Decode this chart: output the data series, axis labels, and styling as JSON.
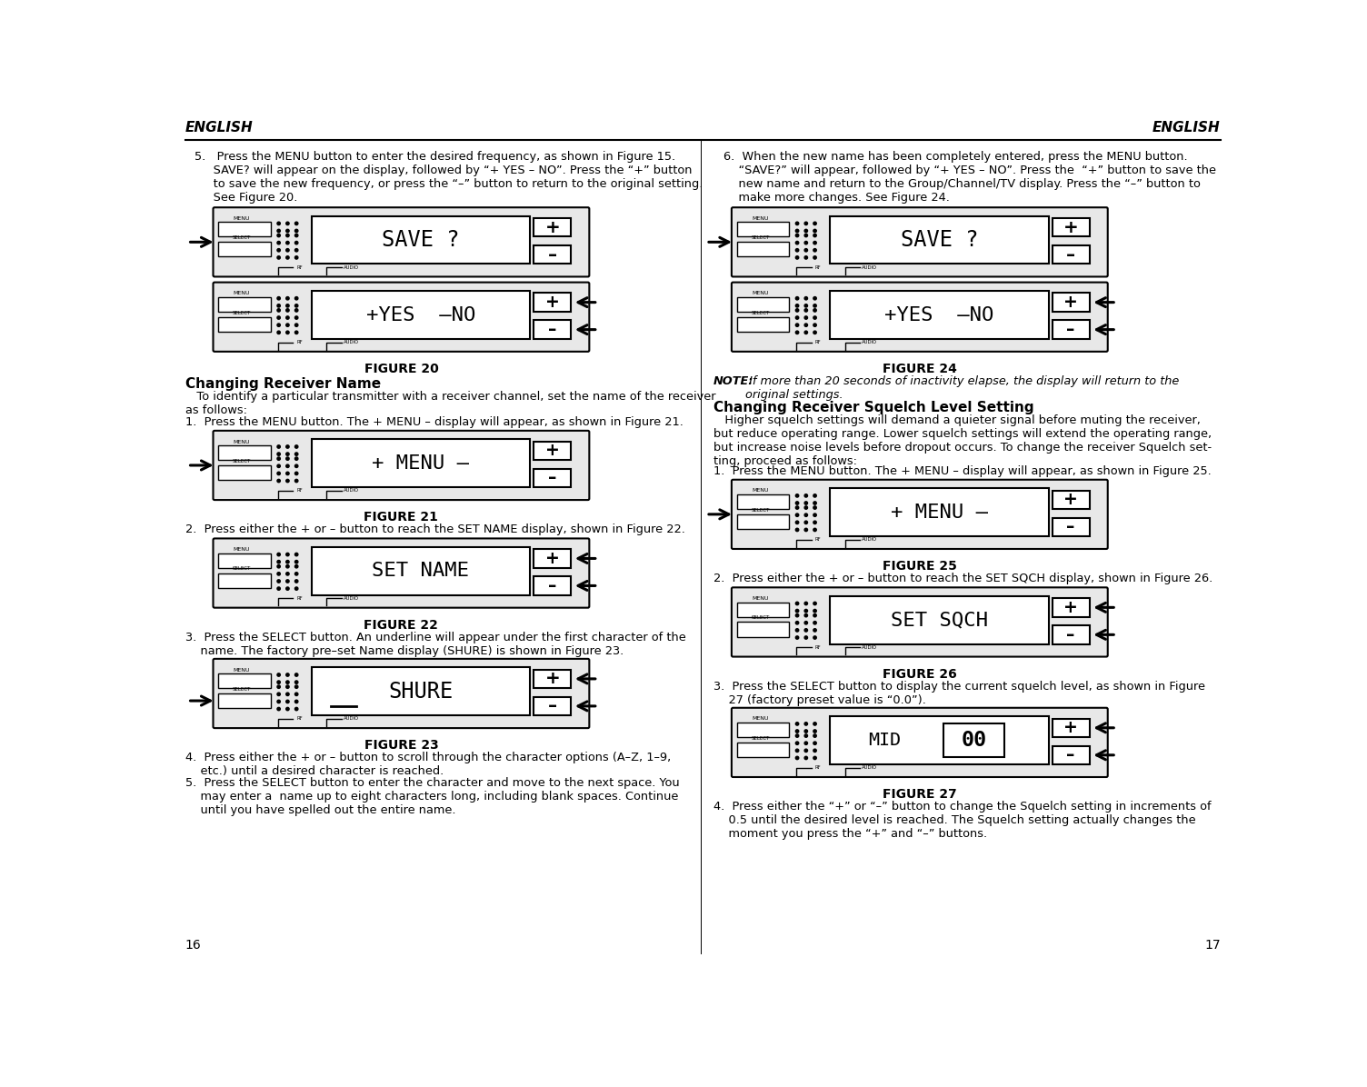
{
  "page_bg": "#ffffff",
  "header_text_left": "ENGLISH",
  "header_text_right": "ENGLISH",
  "left_col": {
    "item5_text": "5.   Press the MENU button to enter the desired frequency, as shown in Figure 15.\n     SAVE? will appear on the display, followed by “+ YES – NO”. Press the “+” button\n     to save the new frequency, or press the “–” button to return to the original setting.\n     See Figure 20.",
    "fig20_label": "FIGURE 20",
    "fig20_top_display": "SAVE ?",
    "fig20_bot_display": "+YES  –NO",
    "heading1": "Changing Receiver Name",
    "para1": "   To identify a particular transmitter with a receiver channel, set the name of the receiver\nas follows:",
    "item1": "1.  Press the MENU button. The + MENU – display will appear, as shown in Figure 21.",
    "fig21_label": "FIGURE 21",
    "fig21_display": "+ MENU –",
    "item2": "2.  Press either the + or – button to reach the SET NAME display, shown in Figure 22.",
    "fig22_label": "FIGURE 22",
    "fig22_display": "SET NAME",
    "item3": "3.  Press the SELECT button. An underline will appear under the first character of the\n    name. The factory pre–set Name display (SHURE) is shown in Figure 23.",
    "fig23_label": "FIGURE 23",
    "fig23_display": "SHURE",
    "item4_text": "4.  Press either the + or – button to scroll through the character options (A–Z, 1–9,\n    etc.) until a desired character is reached.",
    "item5b_text": "5.  Press the SELECT button to enter the character and move to the next space. You\n    may enter a  name up to eight characters long, including blank spaces. Continue\n    until you have spelled out the entire name."
  },
  "right_col": {
    "item6_text": "6.  When the new name has been completely entered, press the MENU button.\n    “SAVE?” will appear, followed by “+ YES – NO”. Press the  “+” button to save the\n    new name and return to the Group/Channel/TV display. Press the “–” button to\n    make more changes. See Figure 24.",
    "fig24_label": "FIGURE 24",
    "fig24_top_display": "SAVE ?",
    "fig24_bot_display": "+YES  –NO",
    "note_bold": "NOTE:",
    "note_italic": " If more than 20 seconds of inactivity elapse, the display will return to the\noriginal settings.",
    "heading2": "Changing Receiver Squelch Level Setting",
    "para2": "   Higher squelch settings will demand a quieter signal before muting the receiver,\nbut reduce operating range. Lower squelch settings will extend the operating range,\nbut increase noise levels before dropout occurs. To change the receiver Squelch set-\nting, proceed as follows:",
    "item1b": "1.  Press the MENU button. The + MENU – display will appear, as shown in Figure 25.",
    "fig25_label": "FIGURE 25",
    "fig25_display": "+ MENU –",
    "item2b": "2.  Press either the + or – button to reach the SET SQCH display, shown in Figure 26.",
    "fig26_label": "FIGURE 26",
    "fig26_display": "SET SQCH",
    "item3b": "3.  Press the SELECT button to display the current squelch level, as shown in Figure\n    27 (factory preset value is “0.0”).",
    "fig27_label": "FIGURE 27",
    "item4b_text": "4.  Press either the “+” or “–” button to change the Squelch setting in increments of\n    0.5 until the desired level is reached. The Squelch setting actually changes the\n    moment you press the “+” and “–” buttons."
  },
  "pagenum_left": "16",
  "pagenum_right": "17"
}
